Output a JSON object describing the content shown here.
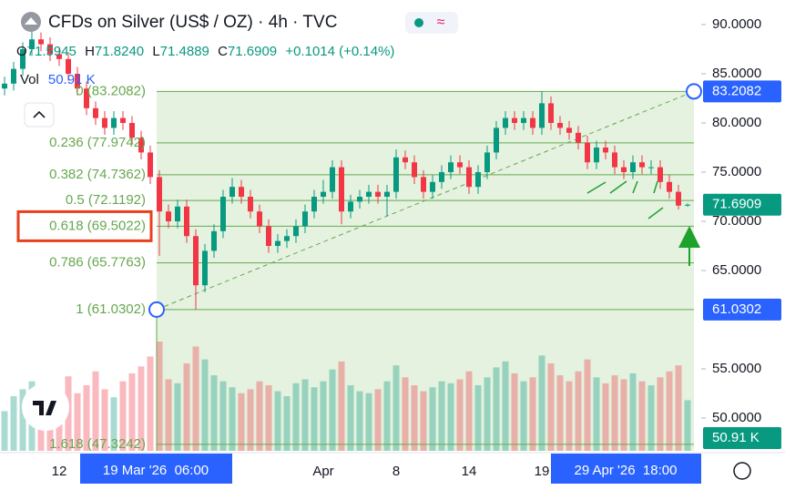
{
  "chart_data": {
    "type": "candlestick",
    "title": "CFDs on Silver (US$ / OZ) · 4h · TVC",
    "ohlc_readout": {
      "o": "O",
      "open": "71.5945",
      "h": "H",
      "high": "71.8240",
      "l": "L",
      "low": "71.4889",
      "c": "C",
      "close": "71.6909",
      "change": "+0.1014 (+0.14%)"
    },
    "volume_title": "Vol",
    "volume_label": "50.91 K",
    "up_color": "#089981",
    "down_color": "#f23645",
    "ylim": [
      46.67,
      92.5
    ],
    "yticks": [
      {
        "value": 90,
        "label": "90.0000"
      },
      {
        "value": 85,
        "label": "85.0000"
      },
      {
        "value": 80,
        "label": "80.0000"
      },
      {
        "value": 75,
        "label": "75.0000"
      },
      {
        "value": 70,
        "label": "70.0000"
      },
      {
        "value": 65,
        "label": "65.0000"
      },
      {
        "value": 55,
        "label": "55.0000"
      },
      {
        "value": 50,
        "label": "50.0000"
      }
    ],
    "axis_badges": [
      {
        "value": 83.2082,
        "label": "83.2082",
        "color": "#2962ff"
      },
      {
        "value": 71.6909,
        "label": "71.6909",
        "color": "#089981"
      },
      {
        "value": 61.0302,
        "label": "61.0302",
        "color": "#2962ff"
      }
    ],
    "fib_color": "#66a84f",
    "fib_levels": [
      {
        "value": 83.2082,
        "label": "0 (83.2082)"
      },
      {
        "value": 77.9742,
        "label": "0.236 (77.9742)"
      },
      {
        "value": 74.7362,
        "label": "0.382 (74.7362)"
      },
      {
        "value": 72.1192,
        "label": "0.5 (72.1192)"
      },
      {
        "value": 69.5022,
        "label": "0.618 (69.5022)"
      },
      {
        "value": 65.7763,
        "label": "0.786 (65.7763)"
      },
      {
        "value": 61.0302,
        "label": "1 (61.0302)"
      },
      {
        "value": 47.3242,
        "label": "1.618 (47.3242)"
      }
    ],
    "highlighted_level": 4,
    "fib_start_label": "19 Mar '26  06:00",
    "fib_end_label": "29 Apr '26  18:00",
    "categories": [
      null,
      null,
      null,
      null,
      null,
      null,
      "12",
      null,
      null,
      null,
      null,
      null,
      null,
      null,
      null,
      null,
      null,
      null,
      null,
      null,
      null,
      null,
      null,
      null,
      null,
      null,
      null,
      null,
      null,
      null,
      null,
      null,
      null,
      null,
      null,
      "Apr",
      null,
      null,
      null,
      null,
      null,
      null,
      null,
      "8",
      null,
      null,
      null,
      null,
      null,
      null,
      null,
      "14",
      null,
      null,
      null,
      null,
      null,
      null,
      null,
      "19",
      null,
      null,
      null,
      null,
      null,
      null,
      null,
      null,
      null,
      null,
      null,
      null,
      null,
      null,
      null,
      null
    ],
    "open": [
      83.5,
      84,
      85.5,
      87.5,
      88.5,
      88,
      87,
      86.5,
      85,
      83.5,
      81.5,
      80.5,
      79.5,
      80.5,
      80,
      78.5,
      77,
      74.5,
      71,
      70,
      71.5,
      68.5,
      63.5,
      67,
      69,
      72.5,
      73.5,
      72.5,
      71,
      69.5,
      67.5,
      68,
      68.5,
      69.5,
      71,
      72.5,
      73,
      75.5,
      71,
      72,
      72.5,
      73,
      72.5,
      73,
      76.5,
      76,
      74.5,
      73,
      74,
      75,
      76,
      75.5,
      73.5,
      75,
      77,
      79.5,
      80.5,
      80,
      80.5,
      79.5,
      82,
      80,
      79.5,
      79,
      78,
      76,
      77.5,
      77,
      75.5,
      75,
      76,
      75.5,
      75.5,
      74,
      73,
      71.5945
    ],
    "high": [
      84.7,
      86.2,
      88.2,
      89.3,
      89.2,
      88.7,
      87.7,
      87.2,
      85.7,
      84.2,
      82.2,
      81.2,
      81.2,
      81.2,
      80.7,
      79.2,
      77.7,
      75.2,
      71.7,
      72.2,
      72.2,
      69.2,
      67.7,
      69.7,
      73.2,
      74.4,
      74.2,
      73.2,
      71.7,
      70.2,
      68.7,
      69.2,
      70.2,
      71.7,
      73.2,
      74.2,
      76.2,
      76.2,
      72.7,
      73.2,
      73.7,
      73.7,
      73.7,
      77.3,
      77.2,
      76.7,
      75.2,
      74.7,
      75.7,
      76.7,
      76.7,
      76.2,
      75.7,
      77.7,
      80.2,
      81.2,
      81.2,
      81.2,
      81.2,
      83.2,
      82.7,
      80.7,
      80.2,
      79.7,
      78.7,
      78.2,
      78.2,
      77.7,
      76.2,
      76.7,
      76.7,
      76.2,
      76.2,
      74.7,
      73.7,
      71.824
    ],
    "low": [
      82.8,
      83.3,
      84.8,
      86.8,
      87.3,
      86.3,
      85.8,
      84.3,
      82.8,
      80.8,
      79.8,
      78.8,
      78.8,
      79.3,
      77.8,
      76.3,
      73.8,
      66.5,
      69.3,
      69.3,
      67.8,
      61.03,
      62.8,
      66.3,
      68.3,
      71.8,
      71.8,
      70.3,
      68.8,
      66.8,
      66.8,
      67.3,
      67.8,
      68.8,
      70.3,
      71.8,
      72.3,
      69.7,
      70.3,
      71.3,
      71.8,
      71.8,
      70.5,
      72.3,
      75.3,
      73.8,
      72.3,
      72.3,
      73.3,
      74.3,
      74.8,
      72.8,
      72.8,
      74.3,
      76.3,
      78.8,
      79.3,
      79.3,
      78.8,
      78.8,
      79.3,
      78.8,
      78.3,
      77.3,
      75.3,
      75.3,
      76.3,
      74.8,
      74.3,
      74.3,
      74.8,
      74.8,
      73.3,
      72.3,
      71.2,
      71.4889
    ],
    "close": [
      84,
      85.5,
      87.5,
      88.5,
      88,
      87,
      86.5,
      85,
      83.5,
      81.5,
      80.5,
      79.5,
      80.5,
      80,
      78.5,
      77,
      74.5,
      71,
      70,
      71.5,
      68.5,
      63.5,
      67,
      69,
      72.5,
      73.5,
      72.5,
      71,
      69.5,
      67.5,
      68,
      68.5,
      69.5,
      71,
      72.5,
      73,
      75.5,
      71,
      72,
      72.5,
      73,
      72.5,
      73,
      76.5,
      76,
      74.5,
      73,
      74,
      75,
      76,
      75.5,
      73.5,
      75,
      77,
      79.5,
      80.5,
      80,
      80.5,
      79.5,
      82,
      80,
      79.5,
      79,
      78,
      76,
      77.5,
      77,
      75.5,
      75,
      76,
      75.5,
      75.5,
      74,
      73,
      71.6,
      71.6909
    ],
    "volume": [
      40,
      55,
      62,
      70,
      48,
      52,
      60,
      75,
      58,
      66,
      80,
      62,
      54,
      70,
      78,
      85,
      95,
      110,
      72,
      68,
      88,
      105,
      92,
      76,
      70,
      64,
      58,
      62,
      70,
      66,
      60,
      55,
      68,
      72,
      64,
      70,
      82,
      90,
      66,
      60,
      58,
      62,
      70,
      86,
      74,
      66,
      60,
      64,
      70,
      68,
      72,
      80,
      66,
      74,
      84,
      90,
      78,
      70,
      74,
      96,
      88,
      76,
      70,
      80,
      92,
      74,
      68,
      76,
      72,
      78,
      70,
      66,
      74,
      80,
      86,
      50.91
    ]
  }
}
